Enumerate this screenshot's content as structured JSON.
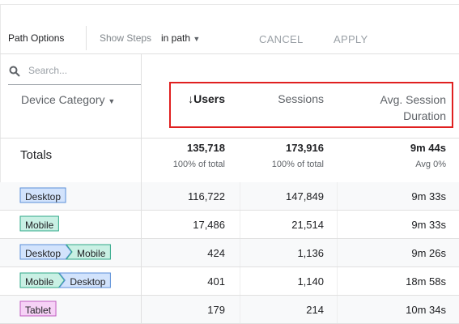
{
  "toolbar": {
    "path_options": "Path Options",
    "show_steps": "Show Steps",
    "steps_value": "in path",
    "cancel": "CANCEL",
    "apply": "APPLY"
  },
  "search_placeholder": "Search...",
  "table": {
    "dimension_header": "Device Category",
    "columns": [
      "↓Users",
      "Sessions",
      "Avg. Session Duration"
    ],
    "totals": {
      "label": "Totals",
      "values": [
        "135,718",
        "173,916",
        "9m 44s"
      ],
      "subtitles": [
        "100% of total",
        "100% of total",
        "Avg 0%"
      ]
    },
    "rows": [
      {
        "path": [
          "Desktop"
        ],
        "values": [
          "116,722",
          "147,849",
          "9m 33s"
        ]
      },
      {
        "path": [
          "Mobile"
        ],
        "values": [
          "17,486",
          "21,514",
          "9m 33s"
        ]
      },
      {
        "path": [
          "Desktop",
          "Mobile"
        ],
        "values": [
          "424",
          "1,136",
          "9m 26s"
        ]
      },
      {
        "path": [
          "Mobile",
          "Desktop"
        ],
        "values": [
          "401",
          "1,140",
          "18m 58s"
        ]
      },
      {
        "path": [
          "Tablet"
        ],
        "values": [
          "179",
          "214",
          "10m 34s"
        ]
      }
    ]
  }
}
